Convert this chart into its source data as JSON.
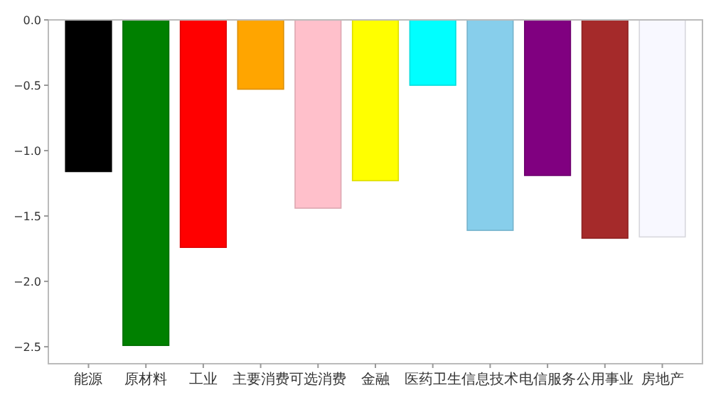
{
  "chart_data": {
    "type": "bar",
    "categories": [
      "能源",
      "原材料",
      "工业",
      "主要消费",
      "可选消费",
      "金融",
      "医药卫生",
      "信息技术",
      "电信服务",
      "公用事业",
      "房地产"
    ],
    "values": [
      -1.16,
      -2.49,
      -1.74,
      -0.53,
      -1.44,
      -1.23,
      -0.5,
      -1.61,
      -1.19,
      -1.67,
      -1.66
    ],
    "colors": [
      "#000000",
      "#008000",
      "#ff0000",
      "#ffa500",
      "#ffc0cb",
      "#ffff00",
      "#00ffff",
      "#87ceeb",
      "#800080",
      "#a52a2a",
      "#f8f8ff"
    ],
    "ylim": [
      -2.63,
      0
    ],
    "yticks": [
      {
        "value": 0,
        "label": "0.0"
      },
      {
        "value": -0.5,
        "label": "−0.5"
      },
      {
        "value": -1,
        "label": "−1.0"
      },
      {
        "value": -1.5,
        "label": "−1.5"
      },
      {
        "value": -2,
        "label": "−2.0"
      },
      {
        "value": -2.5,
        "label": "−2.5"
      }
    ],
    "grid": false
  }
}
